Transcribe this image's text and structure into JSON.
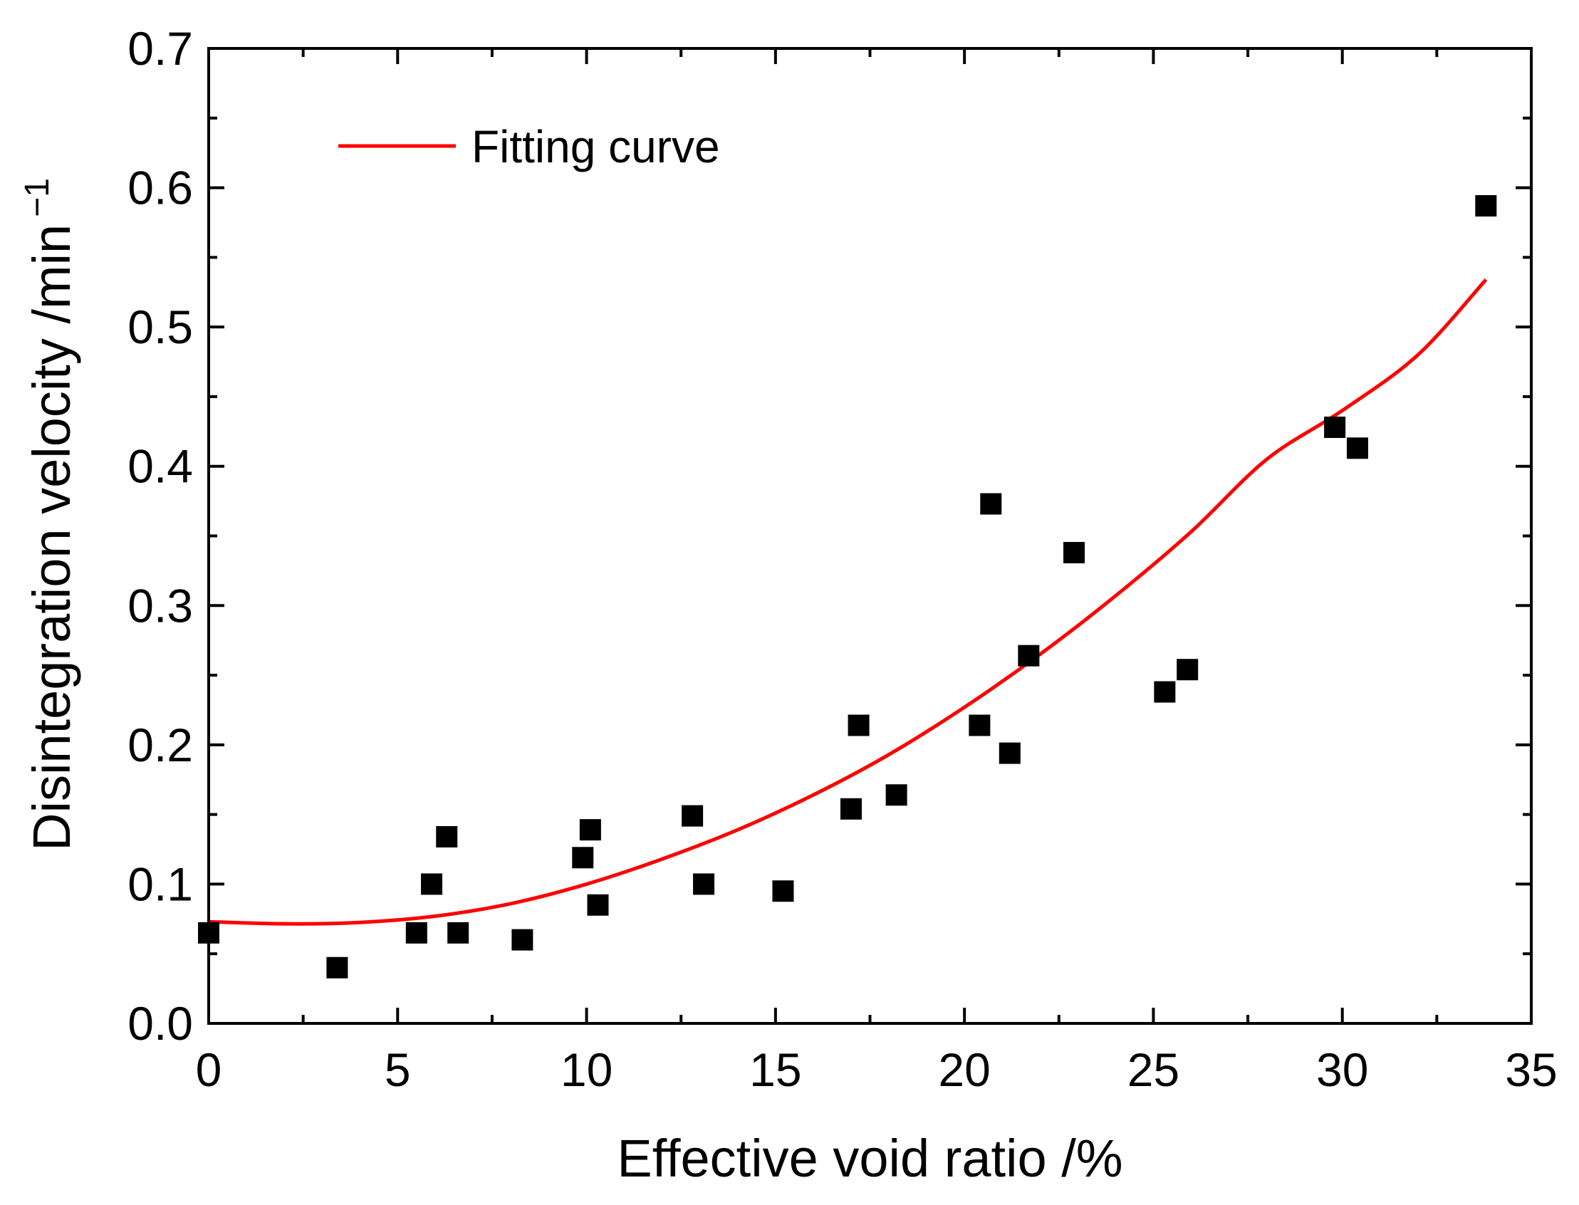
{
  "chart_data": {
    "type": "scatter",
    "xlabel": "Effective void ratio /%",
    "ylabel": "Disintegration velocity /min",
    "ylabel_superscript": "−1",
    "xlim": [
      0,
      35
    ],
    "ylim": [
      0,
      0.7
    ],
    "x_ticks": [
      "0",
      "5",
      "10",
      "15",
      "20",
      "25",
      "30",
      "35"
    ],
    "y_ticks": [
      "0.0",
      "0.1",
      "0.2",
      "0.3",
      "0.4",
      "0.5",
      "0.6",
      "0.7"
    ],
    "grid": false,
    "legend": {
      "position": "top-left",
      "entries": [
        "Fitting curve"
      ]
    },
    "series": [
      {
        "kind": "points",
        "marker": "square",
        "color": "#000000",
        "points": [
          [
            0.0,
            0.065
          ],
          [
            3.4,
            0.04
          ],
          [
            5.5,
            0.065
          ],
          [
            5.9,
            0.1
          ],
          [
            6.3,
            0.134
          ],
          [
            6.6,
            0.065
          ],
          [
            8.3,
            0.06
          ],
          [
            9.9,
            0.119
          ],
          [
            10.1,
            0.139
          ],
          [
            10.3,
            0.085
          ],
          [
            12.8,
            0.149
          ],
          [
            13.1,
            0.1
          ],
          [
            15.2,
            0.095
          ],
          [
            17.0,
            0.154
          ],
          [
            17.2,
            0.214
          ],
          [
            18.2,
            0.164
          ],
          [
            20.4,
            0.214
          ],
          [
            20.7,
            0.373
          ],
          [
            21.2,
            0.194
          ],
          [
            21.7,
            0.264
          ],
          [
            22.9,
            0.338
          ],
          [
            25.3,
            0.238
          ],
          [
            25.9,
            0.254
          ],
          [
            29.8,
            0.428
          ],
          [
            30.4,
            0.413
          ],
          [
            33.8,
            0.587
          ]
        ]
      },
      {
        "name": "Fitting curve",
        "kind": "line",
        "color": "#ff0000",
        "points": [
          [
            0,
            0.073
          ],
          [
            2,
            0.0715
          ],
          [
            4,
            0.0725
          ],
          [
            6,
            0.077
          ],
          [
            8,
            0.086
          ],
          [
            10,
            0.1
          ],
          [
            12,
            0.118
          ],
          [
            14,
            0.139
          ],
          [
            16,
            0.164
          ],
          [
            18,
            0.193
          ],
          [
            20,
            0.227
          ],
          [
            22,
            0.265
          ],
          [
            24,
            0.307
          ],
          [
            26,
            0.353
          ],
          [
            28,
            0.405
          ],
          [
            30,
            0.44
          ],
          [
            32,
            0.48
          ],
          [
            33.8,
            0.534
          ]
        ]
      }
    ]
  }
}
